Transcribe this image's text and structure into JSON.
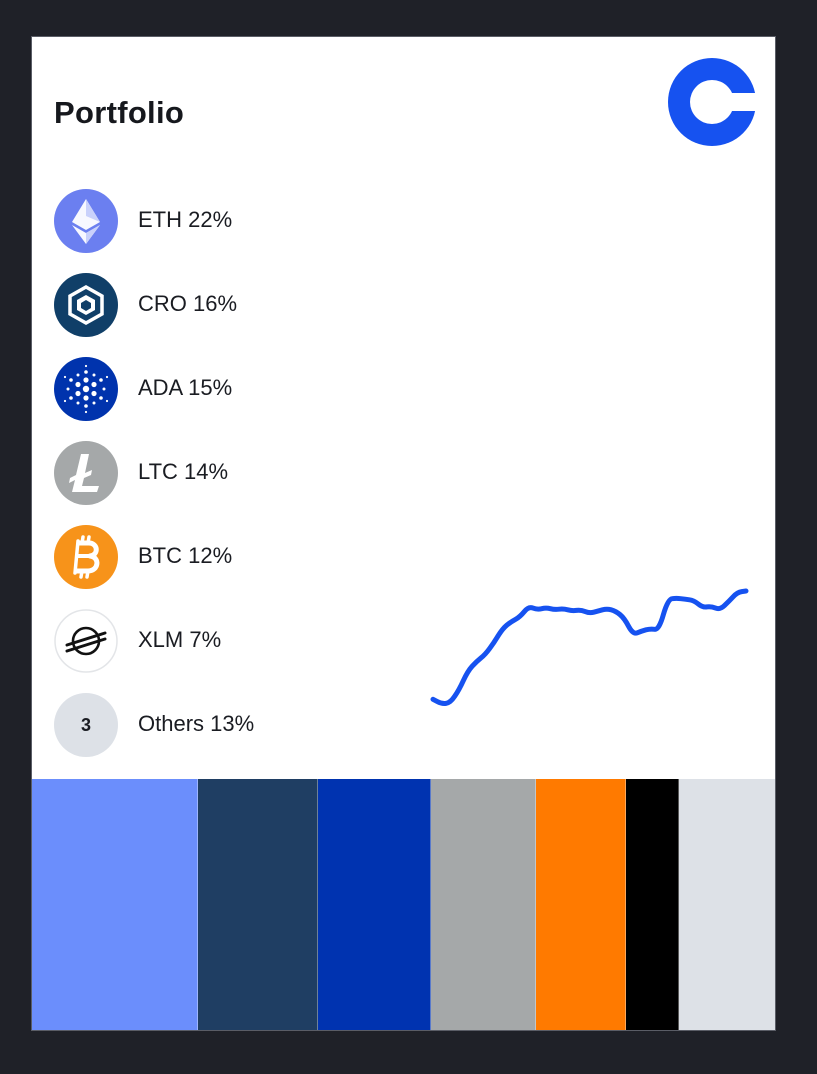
{
  "header": {
    "title": "Portfolio",
    "logo": "coinbase-logo-icon"
  },
  "assets": [
    {
      "symbol": "ETH",
      "label": "ETH 22%",
      "percent": 22,
      "icon": "eth-icon",
      "color": "#6b8efc",
      "bar_color": "#6b8efc"
    },
    {
      "symbol": "CRO",
      "label": "CRO 16%",
      "percent": 16,
      "icon": "cro-icon",
      "color": "#103f68",
      "bar_color": "#1f3e63"
    },
    {
      "symbol": "ADA",
      "label": "ADA 15%",
      "percent": 15,
      "icon": "ada-icon",
      "color": "#0033ad",
      "bar_color": "#0033b0"
    },
    {
      "symbol": "LTC",
      "label": "LTC 14%",
      "percent": 14,
      "icon": "ltc-icon",
      "color": "#a5a8a9",
      "bar_color": "#a5a8a9"
    },
    {
      "symbol": "BTC",
      "label": "BTC 12%",
      "percent": 12,
      "icon": "btc-icon",
      "color": "#f7931a",
      "bar_color": "#ff7a00"
    },
    {
      "symbol": "XLM",
      "label": "XLM 7%",
      "percent": 7,
      "icon": "xlm-icon",
      "color": "#000000",
      "bar_color": "#000000"
    },
    {
      "symbol": "Others",
      "label": "Others 13%",
      "percent": 13,
      "count": "3",
      "icon": "others-count-badge",
      "color": "#dde1e7",
      "bar_color": "#dde1e7"
    }
  ],
  "sparkline": {
    "color": "#1652f0",
    "values": [
      20,
      16,
      17,
      28,
      44,
      52,
      58,
      68,
      80,
      86,
      90,
      99,
      96,
      98,
      96,
      97,
      95,
      96,
      93,
      95,
      97,
      95,
      89,
      75,
      78,
      80,
      79,
      105,
      106,
      105,
      104,
      98,
      99,
      96,
      103,
      111,
      112
    ]
  }
}
